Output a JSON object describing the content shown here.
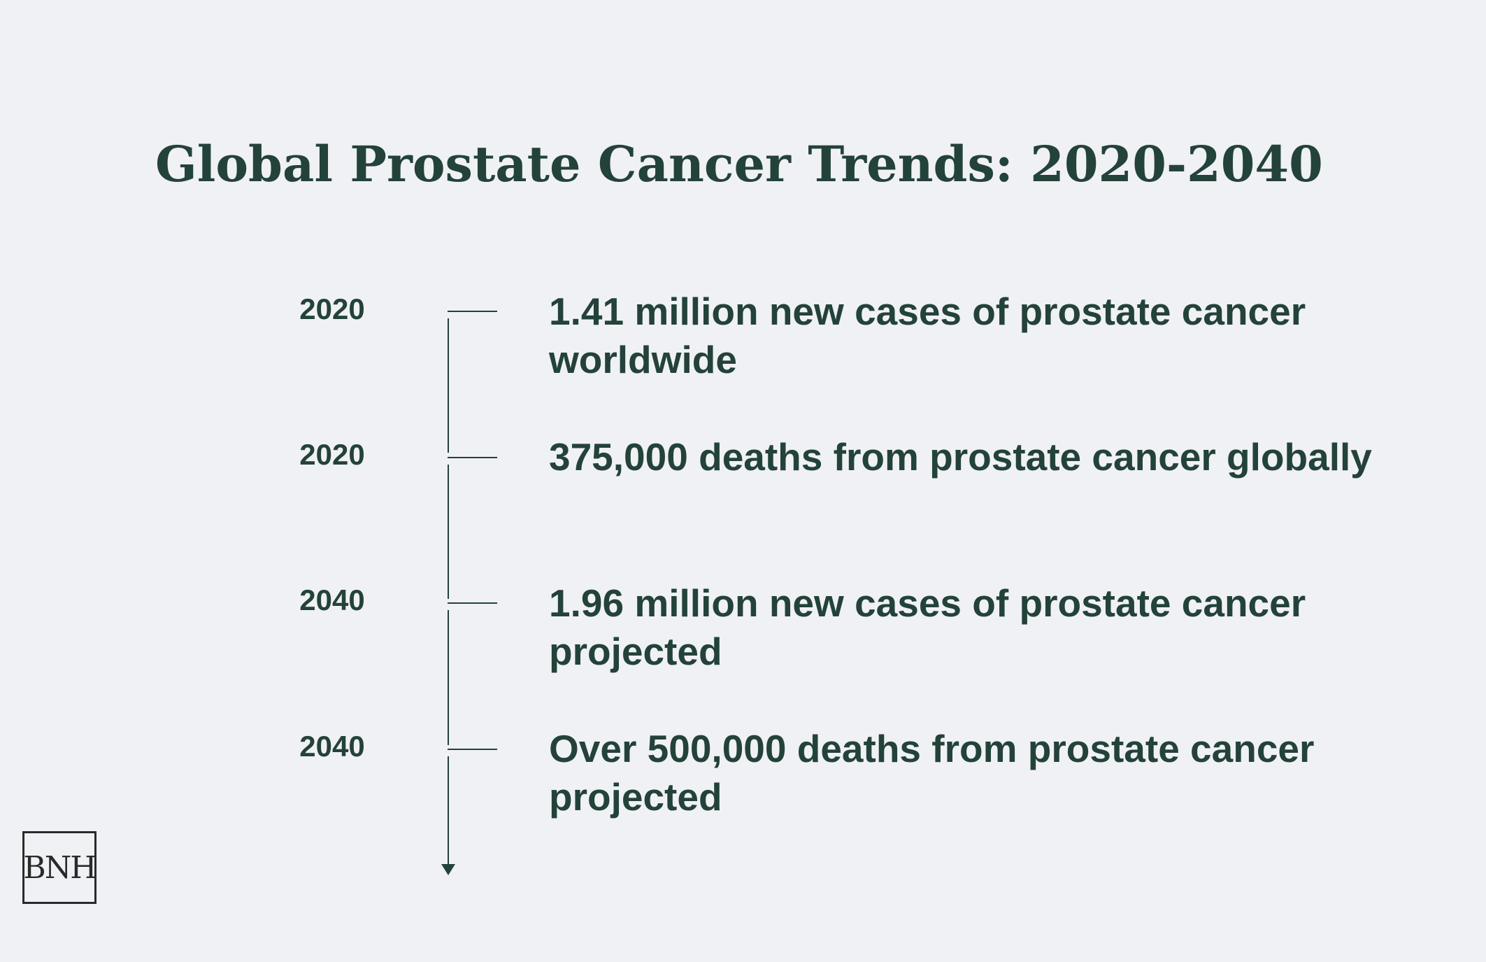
{
  "title": "Global Prostate Cancer Trends: 2020-2040",
  "events": [
    {
      "year": "2020",
      "text": "1.41 million new cases of prostate cancer worldwide"
    },
    {
      "year": "2020",
      "text": "375,000 deaths from prostate cancer globally"
    },
    {
      "year": "2040",
      "text": "1.96 million new cases of prostate cancer projected"
    },
    {
      "year": "2040",
      "text": "Over 500,000 deaths from prostate cancer projected"
    }
  ],
  "logo": {
    "text": "BNH"
  },
  "colors": {
    "background": "#f0f1f5",
    "text": "#23423a",
    "logo": "#2a2a2a"
  }
}
